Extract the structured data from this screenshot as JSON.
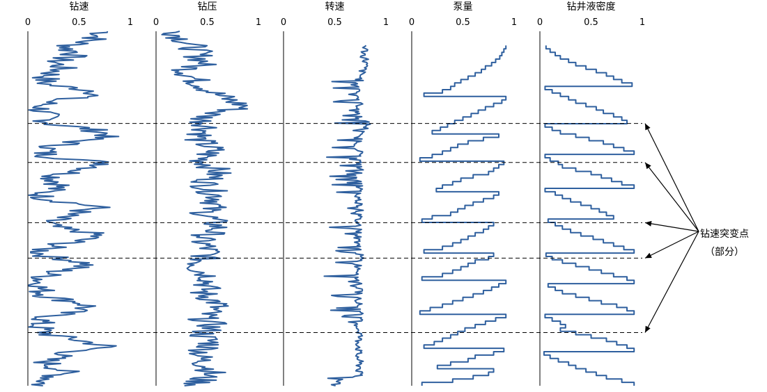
{
  "colors": {
    "series": "#2e5f9e",
    "axis": "#000000",
    "guide": "#000000"
  },
  "chart_data": {
    "type": "line",
    "orientation": "vertical-depth-tracks",
    "xlim": [
      0,
      1
    ],
    "x_ticks": [
      "0",
      "0.5",
      "1"
    ],
    "grid": false,
    "panels": [
      {
        "title": "钻速",
        "style": "noisy",
        "start_depth": 0.0,
        "values": [
          0.78,
          0.7,
          0.66,
          0.55,
          0.42,
          0.38,
          0.5,
          0.42,
          0.3,
          0.28,
          0.33,
          0.3,
          0.22,
          0.18,
          0.15,
          0.2,
          0.5,
          0.72,
          0.62,
          0.3,
          0.18,
          0.14,
          0.12,
          0.15,
          0.18,
          0.2,
          0.25,
          0.55,
          0.7,
          0.8,
          0.62,
          0.45,
          0.28,
          0.18,
          0.15,
          0.22,
          0.55,
          0.8,
          0.68,
          0.5,
          0.35,
          0.25,
          0.3,
          0.32,
          0.25,
          0.15,
          0.12,
          0.22,
          0.45,
          0.7,
          0.55,
          0.4,
          0.3,
          0.2,
          0.18,
          0.3,
          0.55,
          0.68,
          0.55,
          0.4,
          0.25,
          0.15,
          0.12,
          0.22,
          0.45,
          0.6,
          0.45,
          0.3,
          0.2,
          0.15,
          0.12,
          0.1,
          0.12,
          0.15,
          0.2,
          0.35,
          0.55,
          0.6,
          0.45,
          0.3,
          0.18,
          0.12,
          0.1,
          0.12,
          0.15,
          0.25,
          0.45,
          0.62,
          0.78,
          0.55,
          0.38,
          0.25,
          0.18,
          0.2,
          0.3,
          0.35,
          0.3,
          0.22,
          0.15,
          0.12
        ]
      },
      {
        "title": "钻压",
        "style": "noisy",
        "start_depth": 0.0,
        "values": [
          0.18,
          0.22,
          0.26,
          0.3,
          0.35,
          0.38,
          0.4,
          0.42,
          0.45,
          0.48,
          0.35,
          0.3,
          0.32,
          0.36,
          0.4,
          0.45,
          0.5,
          0.55,
          0.62,
          0.7,
          0.78,
          0.88,
          0.72,
          0.55,
          0.48,
          0.45,
          0.5,
          0.52,
          0.48,
          0.45,
          0.4,
          0.45,
          0.5,
          0.55,
          0.52,
          0.48,
          0.45,
          0.5,
          0.55,
          0.6,
          0.58,
          0.55,
          0.5,
          0.48,
          0.52,
          0.55,
          0.6,
          0.62,
          0.58,
          0.55,
          0.5,
          0.48,
          0.52,
          0.55,
          0.58,
          0.6,
          0.55,
          0.5,
          0.42,
          0.45,
          0.48,
          0.5,
          0.52,
          0.48,
          0.45,
          0.42,
          0.4,
          0.45,
          0.5,
          0.55,
          0.52,
          0.5,
          0.48,
          0.45,
          0.5,
          0.55,
          0.6,
          0.58,
          0.52,
          0.48,
          0.45,
          0.5,
          0.55,
          0.52,
          0.48,
          0.45,
          0.5,
          0.55,
          0.52,
          0.48,
          0.45,
          0.42,
          0.45,
          0.48,
          0.52,
          0.55,
          0.5,
          0.45,
          0.42,
          0.4
        ]
      },
      {
        "title": "转速",
        "style": "noisy",
        "start_depth": 0.04,
        "values": [
          0.8,
          0.8,
          0.79,
          0.78,
          0.8,
          0.8,
          0.79,
          0.78,
          0.76,
          0.75,
          0.74,
          0.74,
          0.73,
          0.74,
          0.73,
          0.73,
          0.74,
          0.74,
          0.74,
          0.73,
          0.73,
          0.74,
          0.8,
          0.82,
          0.8,
          0.76,
          0.72,
          0.73,
          0.74,
          0.72,
          0.73,
          0.74,
          0.75,
          0.73,
          0.73,
          0.74,
          0.75,
          0.74,
          0.73,
          0.74,
          0.73,
          0.74,
          0.74,
          0.73,
          0.72,
          0.73,
          0.74,
          0.75,
          0.74,
          0.73,
          0.73,
          0.72,
          0.73,
          0.74,
          0.74,
          0.73,
          0.72,
          0.73,
          0.74,
          0.74,
          0.73,
          0.74,
          0.75,
          0.74,
          0.73,
          0.74,
          0.74,
          0.73,
          0.72,
          0.73,
          0.74,
          0.73,
          0.74,
          0.75,
          0.74,
          0.73,
          0.74,
          0.73,
          0.74,
          0.74,
          0.73,
          0.72,
          0.73,
          0.74,
          0.75,
          0.74,
          0.73,
          0.74,
          0.74,
          0.73,
          0.72,
          0.73,
          0.74,
          0.74,
          0.75,
          0.73,
          0.74,
          0.6,
          0.52,
          0.5
        ]
      },
      {
        "title": "泵量",
        "style": "step",
        "start_depth": 0.04,
        "values": [
          0.92,
          0.9,
          0.88,
          0.86,
          0.82,
          0.78,
          0.72,
          0.68,
          0.62,
          0.55,
          0.48,
          0.42,
          0.38,
          0.3,
          0.12,
          0.92,
          0.88,
          0.8,
          0.72,
          0.65,
          0.58,
          0.5,
          0.42,
          0.35,
          0.28,
          0.2,
          0.85,
          0.7,
          0.55,
          0.45,
          0.38,
          0.3,
          0.2,
          0.08,
          0.9,
          0.85,
          0.8,
          0.75,
          0.6,
          0.48,
          0.4,
          0.3,
          0.24,
          0.85,
          0.8,
          0.7,
          0.6,
          0.52,
          0.45,
          0.38,
          0.2,
          0.1,
          0.8,
          0.75,
          0.7,
          0.62,
          0.55,
          0.48,
          0.4,
          0.3,
          0.12,
          0.8,
          0.75,
          0.62,
          0.55,
          0.48,
          0.4,
          0.3,
          0.1,
          0.92,
          0.85,
          0.78,
          0.7,
          0.6,
          0.5,
          0.4,
          0.3,
          0.18,
          0.08,
          0.92,
          0.82,
          0.72,
          0.62,
          0.52,
          0.45,
          0.38,
          0.3,
          0.22,
          0.12,
          0.9,
          0.8,
          0.62,
          0.55,
          0.38,
          0.25,
          0.8,
          0.75,
          0.6,
          0.4,
          0.1
        ]
      },
      {
        "title": "钻井液密度",
        "style": "step",
        "start_depth": 0.04,
        "values": [
          0.06,
          0.1,
          0.15,
          0.2,
          0.28,
          0.35,
          0.45,
          0.55,
          0.65,
          0.72,
          0.8,
          0.9,
          0.05,
          0.12,
          0.2,
          0.28,
          0.35,
          0.45,
          0.55,
          0.62,
          0.72,
          0.8,
          0.85,
          0.05,
          0.12,
          0.2,
          0.35,
          0.48,
          0.62,
          0.72,
          0.82,
          0.92,
          0.05,
          0.1,
          0.18,
          0.22,
          0.35,
          0.5,
          0.6,
          0.7,
          0.8,
          0.92,
          0.05,
          0.15,
          0.22,
          0.3,
          0.4,
          0.5,
          0.58,
          0.65,
          0.72,
          0.08,
          0.15,
          0.22,
          0.3,
          0.4,
          0.52,
          0.62,
          0.72,
          0.82,
          0.92,
          0.06,
          0.12,
          0.22,
          0.35,
          0.48,
          0.6,
          0.72,
          0.85,
          0.92,
          0.08,
          0.15,
          0.22,
          0.35,
          0.48,
          0.6,
          0.75,
          0.85,
          0.92,
          0.05,
          0.12,
          0.2,
          0.25,
          0.2,
          0.35,
          0.5,
          0.65,
          0.75,
          0.85,
          0.92,
          0.04,
          0.1,
          0.18,
          0.28,
          0.35,
          0.45,
          0.55,
          0.65,
          0.8,
          0.92
        ]
      }
    ],
    "mutation_depths": [
      0.26,
      0.37,
      0.54,
      0.64,
      0.85
    ],
    "annotation": {
      "line1": "钻速突变点",
      "line2": "（部分）",
      "target_count": 5
    }
  }
}
